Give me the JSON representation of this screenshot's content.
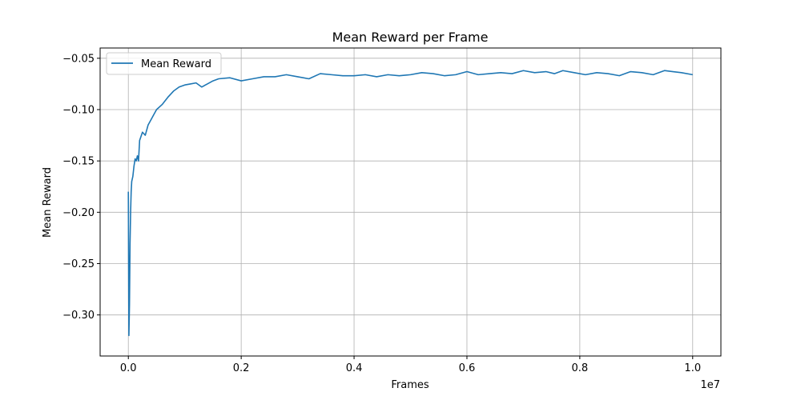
{
  "chart_data": {
    "type": "line",
    "title": "Mean Reward per Frame",
    "xlabel": "Frames",
    "ylabel": "Mean Reward",
    "x_offset_text": "1e7",
    "xlim": [
      -0.05,
      1.05
    ],
    "ylim": [
      -0.34,
      -0.04
    ],
    "x_scale_factor": 10000000,
    "xticks": [
      0.0,
      0.2,
      0.4,
      0.6,
      0.8,
      1.0
    ],
    "xtick_labels": [
      "0.0",
      "0.2",
      "0.4",
      "0.6",
      "0.8",
      "1.0"
    ],
    "yticks": [
      -0.3,
      -0.25,
      -0.2,
      -0.15,
      -0.1,
      -0.05
    ],
    "ytick_labels": [
      "−0.30",
      "−0.25",
      "−0.20",
      "−0.15",
      "−0.10",
      "−0.05"
    ],
    "grid": true,
    "legend_position": "top-left",
    "series": [
      {
        "name": "Mean Reward",
        "color": "#1f77b4",
        "x": [
          0.0,
          0.0005,
          0.001,
          0.002,
          0.003,
          0.004,
          0.005,
          0.006,
          0.008,
          0.01,
          0.012,
          0.014,
          0.016,
          0.018,
          0.02,
          0.025,
          0.03,
          0.035,
          0.04,
          0.045,
          0.05,
          0.06,
          0.07,
          0.08,
          0.09,
          0.1,
          0.11,
          0.12,
          0.13,
          0.14,
          0.15,
          0.16,
          0.18,
          0.2,
          0.22,
          0.24,
          0.26,
          0.28,
          0.3,
          0.32,
          0.34,
          0.36,
          0.38,
          0.4,
          0.42,
          0.44,
          0.46,
          0.48,
          0.5,
          0.52,
          0.54,
          0.56,
          0.58,
          0.6,
          0.62,
          0.64,
          0.66,
          0.68,
          0.7,
          0.72,
          0.74,
          0.755,
          0.77,
          0.79,
          0.81,
          0.83,
          0.85,
          0.87,
          0.89,
          0.91,
          0.93,
          0.95,
          0.965,
          0.98,
          1.0
        ],
        "y": [
          -0.18,
          -0.25,
          -0.32,
          -0.29,
          -0.23,
          -0.2,
          -0.18,
          -0.17,
          -0.165,
          -0.155,
          -0.148,
          -0.15,
          -0.145,
          -0.15,
          -0.13,
          -0.122,
          -0.125,
          -0.115,
          -0.11,
          -0.105,
          -0.1,
          -0.095,
          -0.088,
          -0.082,
          -0.078,
          -0.076,
          -0.075,
          -0.074,
          -0.078,
          -0.075,
          -0.072,
          -0.07,
          -0.069,
          -0.072,
          -0.07,
          -0.068,
          -0.068,
          -0.066,
          -0.068,
          -0.07,
          -0.065,
          -0.066,
          -0.067,
          -0.067,
          -0.066,
          -0.068,
          -0.066,
          -0.067,
          -0.066,
          -0.064,
          -0.065,
          -0.067,
          -0.066,
          -0.063,
          -0.066,
          -0.065,
          -0.064,
          -0.065,
          -0.062,
          -0.064,
          -0.063,
          -0.065,
          -0.062,
          -0.064,
          -0.066,
          -0.064,
          -0.065,
          -0.067,
          -0.063,
          -0.064,
          -0.066,
          -0.062,
          -0.063,
          -0.064,
          -0.066
        ]
      }
    ]
  }
}
